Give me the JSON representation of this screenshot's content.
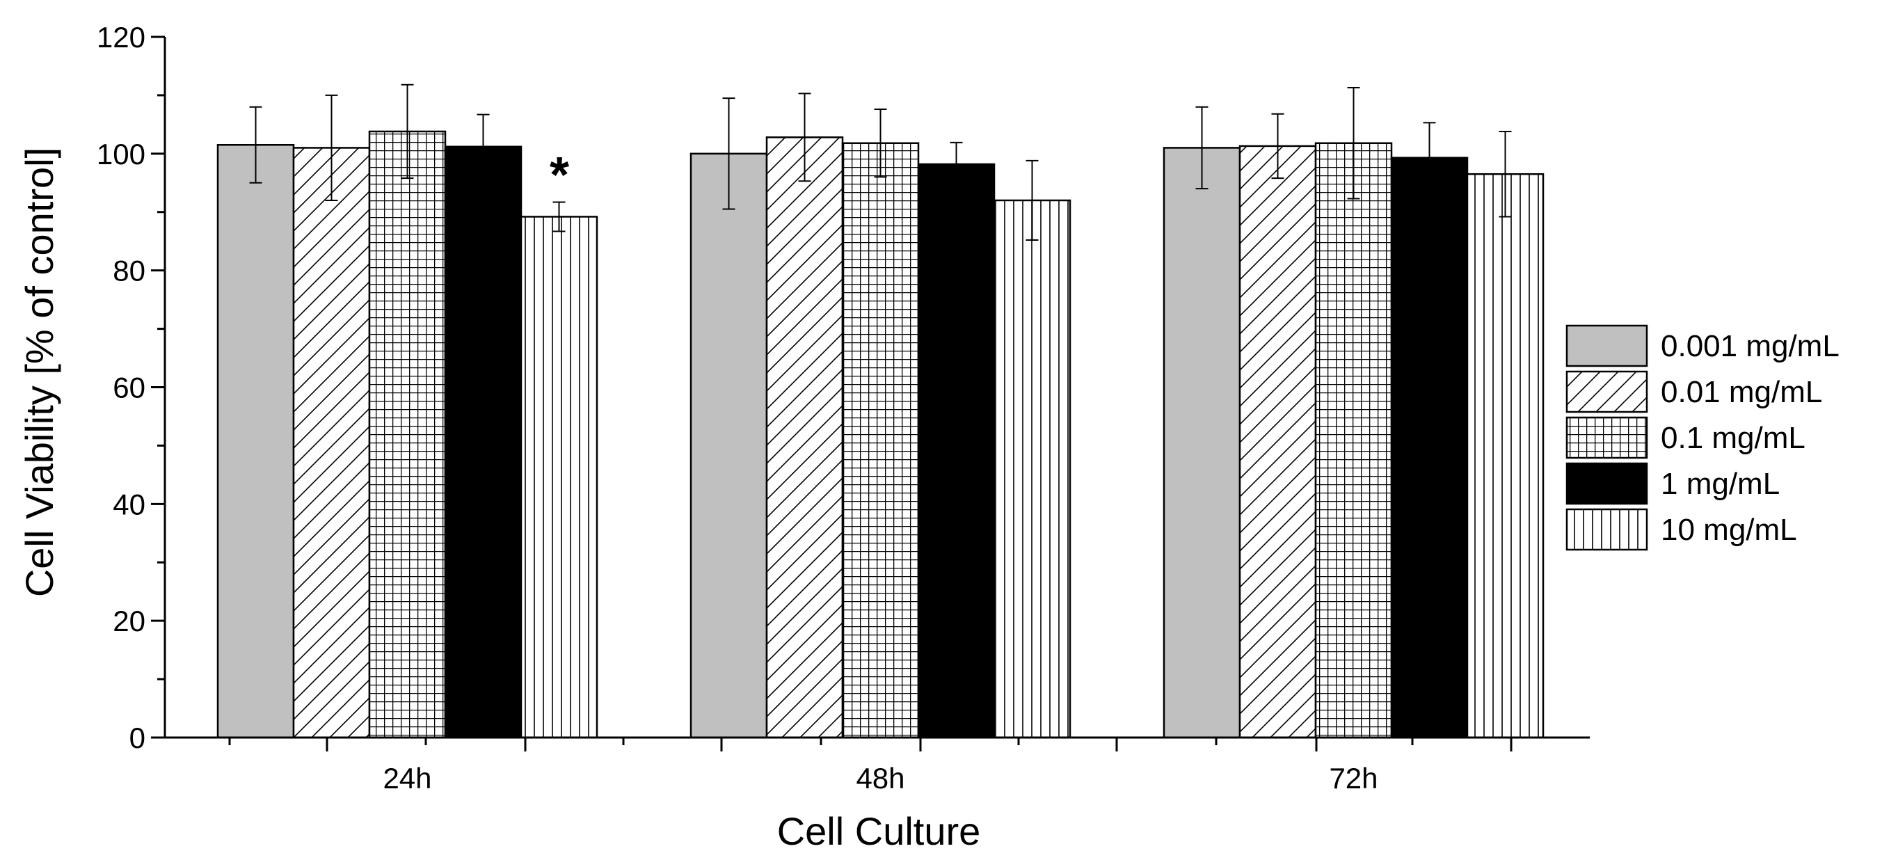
{
  "chart_data": {
    "type": "bar",
    "title": "",
    "xlabel": "Cell Culture",
    "ylabel": "Cell Viability [% of control]",
    "ylim": [
      0,
      120
    ],
    "yticks": [
      "0",
      "20",
      "40",
      "60",
      "80",
      "100",
      "120"
    ],
    "categories": [
      "24h",
      "48h",
      "72h"
    ],
    "series": [
      {
        "name": "0.001 mg/mL",
        "pattern": "solid-gray",
        "values": [
          101.5,
          100.0,
          101.0
        ],
        "errors": [
          6.5,
          9.5,
          7.0
        ]
      },
      {
        "name": "0.01 mg/mL",
        "pattern": "diagonal-hatch",
        "values": [
          101.0,
          102.8,
          101.3
        ],
        "errors": [
          9.0,
          7.5,
          5.5
        ]
      },
      {
        "name": "0.1 mg/mL",
        "pattern": "grid-hatch",
        "values": [
          103.8,
          101.8,
          101.8
        ],
        "errors": [
          8.0,
          5.8,
          9.5
        ]
      },
      {
        "name": "1 mg/mL",
        "pattern": "solid-black",
        "values": [
          101.2,
          98.2,
          99.3
        ],
        "errors": [
          5.5,
          3.7,
          6.0
        ]
      },
      {
        "name": "10 mg/mL",
        "pattern": "vertical-hatch",
        "values": [
          89.2,
          92.0,
          96.5
        ],
        "errors": [
          2.5,
          6.8,
          7.3
        ]
      }
    ],
    "annotations": [
      {
        "text": "*",
        "category": "24h",
        "series": "10 mg/mL"
      }
    ],
    "legend_position": "right",
    "grid": false
  },
  "colors": {
    "gray_fill": "#c0c0c0",
    "black_fill": "#000000",
    "white_fill": "#ffffff",
    "stroke": "#000000"
  }
}
